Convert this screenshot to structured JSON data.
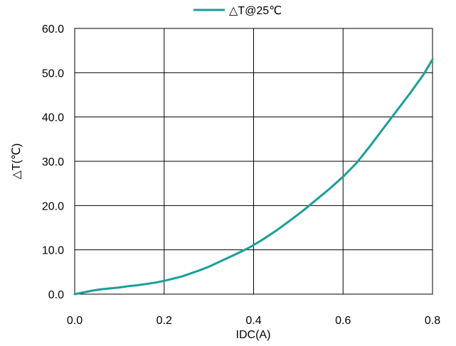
{
  "chart_data": {
    "type": "line",
    "title": "",
    "xlabel": "IDC(A)",
    "ylabel": "△T(℃)",
    "xlim": [
      0.0,
      0.8
    ],
    "ylim": [
      0.0,
      60.0
    ],
    "x_ticks": [
      "0.0",
      "0.2",
      "0.4",
      "0.6",
      "0.8"
    ],
    "y_ticks": [
      "0.0",
      "10.0",
      "20.0",
      "30.0",
      "40.0",
      "50.0",
      "60.0"
    ],
    "grid": true,
    "legend_position": "top-center",
    "series": [
      {
        "name": "△T@25℃",
        "color": "#1a9e9a",
        "x": [
          0.0,
          0.02,
          0.04,
          0.06,
          0.08,
          0.1,
          0.12,
          0.14,
          0.16,
          0.18,
          0.2,
          0.22,
          0.24,
          0.26,
          0.28,
          0.3,
          0.33,
          0.36,
          0.39,
          0.42,
          0.45,
          0.48,
          0.51,
          0.54,
          0.57,
          0.6,
          0.63,
          0.66,
          0.69,
          0.72,
          0.75,
          0.78,
          0.8
        ],
        "y": [
          0.0,
          0.4,
          0.8,
          1.1,
          1.3,
          1.5,
          1.8,
          2.0,
          2.3,
          2.6,
          3.0,
          3.5,
          4.0,
          4.7,
          5.4,
          6.2,
          7.6,
          9.0,
          10.5,
          12.3,
          14.3,
          16.5,
          18.8,
          21.3,
          23.8,
          26.5,
          29.6,
          33.4,
          37.4,
          41.4,
          45.4,
          49.6,
          53.0
        ]
      }
    ]
  }
}
